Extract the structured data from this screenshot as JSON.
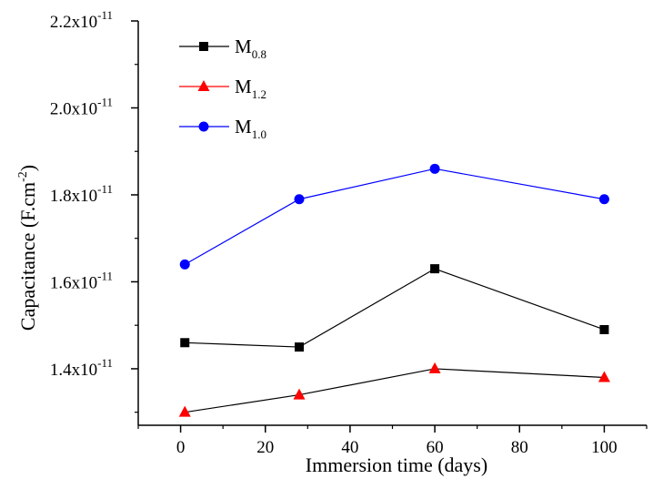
{
  "chart_data": {
    "type": "line",
    "title": "",
    "xlabel": "Immersion time (days)",
    "ylabel": {
      "base": "Capacitance (F.cm",
      "sup": "-2",
      "close": ")"
    },
    "xlim": [
      -10,
      110
    ],
    "ylim": [
      1.27e-11,
      2.2e-11
    ],
    "x_ticks": [
      0,
      20,
      40,
      60,
      80,
      100
    ],
    "x_tick_labels": [
      "0",
      "20",
      "40",
      "60",
      "80",
      "100"
    ],
    "y_ticks": [
      1.4e-11,
      1.6e-11,
      1.8e-11,
      2e-11,
      2.2e-11
    ],
    "y_tick_labels": [
      {
        "mant": "1.4x10",
        "exp": "-11"
      },
      {
        "mant": "1.6x10",
        "exp": "-11"
      },
      {
        "mant": "1.8x10",
        "exp": "-11"
      },
      {
        "mant": "2.0x10",
        "exp": "-11"
      },
      {
        "mant": "2.2x10",
        "exp": "-11"
      }
    ],
    "x": [
      1,
      28,
      60,
      100
    ],
    "grid": false,
    "legend_position": "top-left",
    "series": [
      {
        "name": "M",
        "sub": "0.8",
        "values": [
          1.46e-11,
          1.45e-11,
          1.63e-11,
          1.49e-11
        ],
        "line_color": "#000000",
        "marker_color": "#000000",
        "marker": "square"
      },
      {
        "name": "M",
        "sub": "1.2",
        "values": [
          1.3e-11,
          1.34e-11,
          1.4e-11,
          1.38e-11
        ],
        "line_color": "#000000",
        "marker_color": "#ff0000",
        "marker": "triangle"
      },
      {
        "name": "M",
        "sub": "1.0",
        "values": [
          1.64e-11,
          1.79e-11,
          1.86e-11,
          1.79e-11
        ],
        "line_color": "#0000ff",
        "marker_color": "#0000ff",
        "marker": "circle"
      }
    ],
    "legend_line_colors": [
      "#000000",
      "#ff0000",
      "#0000ff"
    ]
  }
}
